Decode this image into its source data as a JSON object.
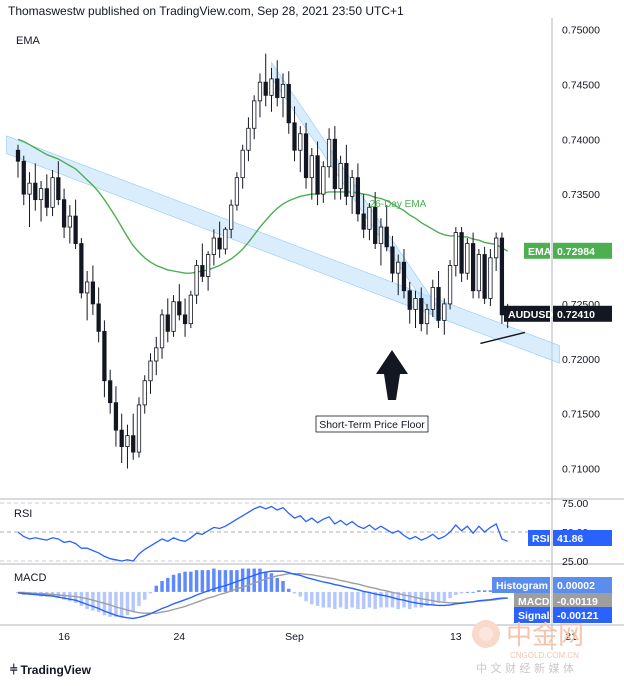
{
  "header": {
    "publisher_line": "Thomaswestw published on TradingView.com, Sep 28, 2021 23:50 UTC+1"
  },
  "footer": {
    "brand": "TradingView"
  },
  "watermark": {
    "cn_logo": "中金网",
    "cn_url": "CNGOLD.COM.CN",
    "cn_sub": "中 文 财 经 新 媒 体"
  },
  "colors": {
    "up": "#ffffff",
    "down": "#131722",
    "ema": "#4caf50",
    "rsi": "#2962ff",
    "macd": "#2962ff",
    "signal": "#9e9e9e",
    "hist": "#2962ff",
    "channel": "#bbdefb"
  },
  "chart_data": [
    {
      "type": "candlestick",
      "pane_label": "EMA",
      "symbol": "AUDUSD",
      "ylim": [
        0.7075,
        0.7505
      ],
      "y_ticks": [
        "0.75000",
        "0.74500",
        "0.74000",
        "0.73500",
        "0.73000",
        "0.72500",
        "0.72000",
        "0.71500",
        "0.71000"
      ],
      "x_ticks": [
        {
          "label": "16",
          "i": 8
        },
        {
          "label": "24",
          "i": 28
        },
        {
          "label": "Sep",
          "i": 48
        },
        {
          "label": "13",
          "i": 76
        },
        {
          "label": "21",
          "i": 96
        },
        {
          "label": "",
          "i": 0
        }
      ],
      "last_price": "0.72410",
      "ema_label": "EMA",
      "ema_value": "0.72984",
      "ema_annotation": "26-Day EMA",
      "floor_annotation": "Short-Term Price Floor",
      "candles": [
        [
          0.739,
          0.7395,
          0.7365,
          0.738
        ],
        [
          0.738,
          0.7385,
          0.734,
          0.735
        ],
        [
          0.735,
          0.737,
          0.732,
          0.736
        ],
        [
          0.736,
          0.7378,
          0.7335,
          0.7345
        ],
        [
          0.7345,
          0.7362,
          0.7325,
          0.7355
        ],
        [
          0.7355,
          0.7368,
          0.733,
          0.7338
        ],
        [
          0.7338,
          0.7372,
          0.733,
          0.7365
        ],
        [
          0.7365,
          0.738,
          0.734,
          0.7345
        ],
        [
          0.7345,
          0.7355,
          0.731,
          0.732
        ],
        [
          0.732,
          0.734,
          0.7305,
          0.733
        ],
        [
          0.733,
          0.7345,
          0.73,
          0.7305
        ],
        [
          0.7305,
          0.731,
          0.7255,
          0.726
        ],
        [
          0.726,
          0.728,
          0.7235,
          0.727
        ],
        [
          0.727,
          0.7285,
          0.724,
          0.725
        ],
        [
          0.725,
          0.7265,
          0.7215,
          0.7225
        ],
        [
          0.7225,
          0.7235,
          0.7165,
          0.718
        ],
        [
          0.718,
          0.719,
          0.715,
          0.716
        ],
        [
          0.716,
          0.7175,
          0.712,
          0.7135
        ],
        [
          0.7135,
          0.715,
          0.7105,
          0.712
        ],
        [
          0.712,
          0.714,
          0.71,
          0.713
        ],
        [
          0.713,
          0.715,
          0.7108,
          0.7115
        ],
        [
          0.7115,
          0.7165,
          0.711,
          0.7158
        ],
        [
          0.7158,
          0.7185,
          0.715,
          0.718
        ],
        [
          0.718,
          0.7205,
          0.7168,
          0.7198
        ],
        [
          0.7198,
          0.722,
          0.7185,
          0.721
        ],
        [
          0.721,
          0.7245,
          0.72,
          0.724
        ],
        [
          0.724,
          0.7255,
          0.7215,
          0.7225
        ],
        [
          0.7225,
          0.7258,
          0.722,
          0.7252
        ],
        [
          0.7252,
          0.7268,
          0.7235,
          0.724
        ],
        [
          0.724,
          0.7255,
          0.722,
          0.7232
        ],
        [
          0.7232,
          0.7262,
          0.7228,
          0.7258
        ],
        [
          0.7258,
          0.729,
          0.725,
          0.7285
        ],
        [
          0.7285,
          0.7305,
          0.727,
          0.7275
        ],
        [
          0.7275,
          0.7298,
          0.7262,
          0.7295
        ],
        [
          0.7295,
          0.7318,
          0.7285,
          0.731
        ],
        [
          0.731,
          0.7325,
          0.7292,
          0.73
        ],
        [
          0.73,
          0.732,
          0.7295,
          0.7318
        ],
        [
          0.7318,
          0.7345,
          0.731,
          0.734
        ],
        [
          0.734,
          0.737,
          0.7335,
          0.7365
        ],
        [
          0.7365,
          0.7395,
          0.7355,
          0.739
        ],
        [
          0.739,
          0.742,
          0.738,
          0.741
        ],
        [
          0.741,
          0.744,
          0.74,
          0.7435
        ],
        [
          0.7435,
          0.746,
          0.742,
          0.7452
        ],
        [
          0.7452,
          0.7478,
          0.743,
          0.744
        ],
        [
          0.744,
          0.7465,
          0.7425,
          0.7455
        ],
        [
          0.7455,
          0.7472,
          0.743,
          0.7438
        ],
        [
          0.7438,
          0.746,
          0.742,
          0.745
        ],
        [
          0.745,
          0.7462,
          0.7405,
          0.7415
        ],
        [
          0.7415,
          0.743,
          0.738,
          0.739
        ],
        [
          0.739,
          0.7412,
          0.737,
          0.7405
        ],
        [
          0.7405,
          0.7415,
          0.7355,
          0.7365
        ],
        [
          0.7365,
          0.7392,
          0.7345,
          0.7385
        ],
        [
          0.7385,
          0.7398,
          0.734,
          0.735
        ],
        [
          0.735,
          0.738,
          0.7342,
          0.7375
        ],
        [
          0.7375,
          0.741,
          0.7365,
          0.74
        ],
        [
          0.74,
          0.7412,
          0.7345,
          0.7355
        ],
        [
          0.7355,
          0.7385,
          0.7345,
          0.7378
        ],
        [
          0.7378,
          0.7395,
          0.734,
          0.7348
        ],
        [
          0.7348,
          0.7372,
          0.7332,
          0.7365
        ],
        [
          0.7365,
          0.7378,
          0.7325,
          0.7332
        ],
        [
          0.7332,
          0.735,
          0.731,
          0.7318
        ],
        [
          0.7318,
          0.7342,
          0.7308,
          0.7338
        ],
        [
          0.7338,
          0.7352,
          0.73,
          0.7305
        ],
        [
          0.7305,
          0.7328,
          0.7285,
          0.732
        ],
        [
          0.732,
          0.734,
          0.7298,
          0.7302
        ],
        [
          0.7302,
          0.7312,
          0.727,
          0.7278
        ],
        [
          0.7278,
          0.7295,
          0.7258,
          0.7288
        ],
        [
          0.7288,
          0.73,
          0.7255,
          0.7262
        ],
        [
          0.7262,
          0.727,
          0.7232,
          0.7245
        ],
        [
          0.7245,
          0.7262,
          0.7228,
          0.7255
        ],
        [
          0.7255,
          0.7265,
          0.7225,
          0.7232
        ],
        [
          0.7232,
          0.725,
          0.7222,
          0.7245
        ],
        [
          0.7245,
          0.7272,
          0.7238,
          0.7265
        ],
        [
          0.7265,
          0.728,
          0.7228,
          0.7235
        ],
        [
          0.7235,
          0.7255,
          0.7222,
          0.725
        ],
        [
          0.725,
          0.729,
          0.7245,
          0.7285
        ],
        [
          0.7285,
          0.732,
          0.7275,
          0.7315
        ],
        [
          0.7315,
          0.732,
          0.727,
          0.7278
        ],
        [
          0.7278,
          0.731,
          0.7272,
          0.7305
        ],
        [
          0.7305,
          0.7315,
          0.7255,
          0.7262
        ],
        [
          0.7262,
          0.73,
          0.7255,
          0.7295
        ],
        [
          0.7295,
          0.7302,
          0.725,
          0.7255
        ],
        [
          0.7255,
          0.73,
          0.7248,
          0.7292
        ],
        [
          0.7292,
          0.7315,
          0.728,
          0.731
        ],
        [
          0.731,
          0.7315,
          0.7232,
          0.724
        ],
        [
          0.724,
          0.725,
          0.7228,
          0.7241
        ]
      ],
      "ema_series": [
        0.74,
        0.7398,
        0.7395,
        0.7392,
        0.7389,
        0.7386,
        0.7384,
        0.7382,
        0.7379,
        0.7376,
        0.7373,
        0.7368,
        0.7363,
        0.7358,
        0.7352,
        0.7345,
        0.7337,
        0.7329,
        0.732,
        0.7311,
        0.7303,
        0.7297,
        0.7292,
        0.7288,
        0.7285,
        0.7283,
        0.7281,
        0.728,
        0.7279,
        0.7278,
        0.7278,
        0.7279,
        0.728,
        0.7281,
        0.7283,
        0.7285,
        0.7288,
        0.7291,
        0.7295,
        0.73,
        0.7306,
        0.7313,
        0.732,
        0.7326,
        0.7332,
        0.7337,
        0.7341,
        0.7344,
        0.7346,
        0.7348,
        0.7349,
        0.735,
        0.735,
        0.7351,
        0.7352,
        0.7352,
        0.7352,
        0.7352,
        0.7352,
        0.7351,
        0.735,
        0.7349,
        0.7347,
        0.7346,
        0.7344,
        0.7341,
        0.7338,
        0.7335,
        0.7331,
        0.7328,
        0.7324,
        0.7321,
        0.7318,
        0.7315,
        0.7313,
        0.7312,
        0.7312,
        0.7311,
        0.7311,
        0.7309,
        0.7308,
        0.7306,
        0.7305,
        0.7304,
        0.7301,
        0.7298
      ]
    },
    {
      "type": "line",
      "pane_label": "RSI",
      "ylim": [
        25,
        75
      ],
      "y_ticks": [
        "75.00",
        "50.00",
        "25.00"
      ],
      "last_label": "RSI",
      "last_value": "41.86",
      "series": [
        {
          "values": [
            50,
            46,
            44,
            45,
            44,
            43,
            45,
            44,
            41,
            42,
            40,
            36,
            36,
            34,
            32,
            29,
            27,
            26,
            25,
            26,
            25,
            31,
            35,
            38,
            41,
            44,
            42,
            45,
            43,
            42,
            45,
            49,
            48,
            51,
            54,
            53,
            55,
            58,
            61,
            64,
            67,
            70,
            72,
            70,
            72,
            69,
            71,
            66,
            62,
            64,
            59,
            62,
            58,
            61,
            63,
            57,
            60,
            56,
            59,
            55,
            53,
            56,
            52,
            55,
            52,
            49,
            51,
            47,
            44,
            46,
            43,
            45,
            48,
            44,
            46,
            50,
            56,
            51,
            55,
            49,
            55,
            50,
            54,
            57,
            44,
            42
          ]
        }
      ]
    },
    {
      "type": "line",
      "pane_label": "MACD",
      "ylim": [
        -0.0058,
        0.0048
      ],
      "hist_label": "Histogram",
      "hist_value": "0.00002",
      "macd_label": "MACD",
      "macd_value": "-0.00119",
      "signal_label": "Signal",
      "signal_value": "-0.00121",
      "series": [
        {
          "values": [
            -0.0002,
            -0.0003,
            -0.0004,
            -0.0005,
            -0.0006,
            -0.0007,
            -0.0008,
            -0.001,
            -0.0012,
            -0.0014,
            -0.0016,
            -0.002,
            -0.0024,
            -0.0028,
            -0.0032,
            -0.0037,
            -0.0041,
            -0.0045,
            -0.0048,
            -0.005,
            -0.0051,
            -0.0049,
            -0.0046,
            -0.0042,
            -0.0037,
            -0.0032,
            -0.0028,
            -0.0023,
            -0.0019,
            -0.0015,
            -0.0011,
            -0.0006,
            -0.0002,
            0.0002,
            0.0006,
            0.0009,
            0.0012,
            0.0016,
            0.002,
            0.0024,
            0.0028,
            0.0032,
            0.0036,
            0.0038,
            0.004,
            0.004,
            0.004,
            0.0037,
            0.0034,
            0.0032,
            0.0028,
            0.0025,
            0.0022,
            0.0019,
            0.0017,
            0.0014,
            0.0012,
            0.0009,
            0.0007,
            0.0004,
            0.0001,
            -0.0001,
            -0.0004,
            -0.0006,
            -0.0008,
            -0.0011,
            -0.0014,
            -0.0016,
            -0.0019,
            -0.0021,
            -0.0023,
            -0.0024,
            -0.0025,
            -0.0026,
            -0.0026,
            -0.0025,
            -0.0023,
            -0.0022,
            -0.002,
            -0.0019,
            -0.0017,
            -0.0016,
            -0.0015,
            -0.0013,
            -0.0012,
            -0.0012
          ]
        },
        {
          "values": [
            -0.0001,
            -0.0001,
            -0.0002,
            -0.0003,
            -0.0003,
            -0.0004,
            -0.0005,
            -0.0006,
            -0.0007,
            -0.0008,
            -0.0009,
            -0.0011,
            -0.0013,
            -0.0016,
            -0.0019,
            -0.0022,
            -0.0025,
            -0.0029,
            -0.0032,
            -0.0035,
            -0.0038,
            -0.004,
            -0.0041,
            -0.0041,
            -0.0041,
            -0.0039,
            -0.0037,
            -0.0034,
            -0.0031,
            -0.0028,
            -0.0024,
            -0.002,
            -0.0016,
            -0.0012,
            -0.0009,
            -0.0005,
            -0.0002,
            0.0002,
            0.0006,
            0.0009,
            0.0013,
            0.0017,
            0.0021,
            0.0025,
            0.0028,
            0.0031,
            0.0033,
            0.0035,
            0.0035,
            0.0035,
            0.0034,
            0.0033,
            0.0031,
            0.0029,
            0.0027,
            0.0025,
            0.0022,
            0.002,
            0.0017,
            0.0015,
            0.0012,
            0.0009,
            0.0007,
            0.0004,
            0.0002,
            -0.0001,
            -0.0003,
            -0.0006,
            -0.0008,
            -0.0011,
            -0.0013,
            -0.0015,
            -0.0017,
            -0.0019,
            -0.002,
            -0.0021,
            -0.0021,
            -0.0021,
            -0.002,
            -0.0019,
            -0.0018,
            -0.0017,
            -0.0016,
            -0.0015,
            -0.0013,
            -0.0012
          ]
        }
      ]
    }
  ]
}
